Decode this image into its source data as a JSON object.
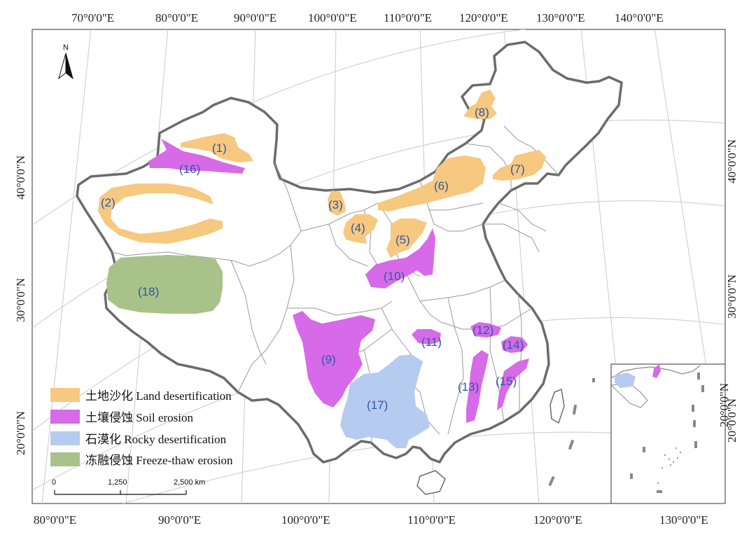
{
  "top_longitudes": [
    "70°0'0\"E",
    "80°0'0\"E",
    "90°0'0\"E",
    "100°0'0\"E",
    "110°0'0\"E",
    "120°0'0\"E",
    "130°0'0\"E",
    "140°0'0\"E"
  ],
  "bottom_longitudes": [
    "80°0'0\"E",
    "90°0'0\"E",
    "100°0'0\"E",
    "110°0'0\"E",
    "120°0'0\"E",
    "130°0'0\"E"
  ],
  "left_latitudes": [
    "40°0'0\"N",
    "30°0'0\"N",
    "20°0'0\"N"
  ],
  "right_latitudes": [
    "40°0'0\"N",
    "30°0'0\"N",
    "20°0'0\"N"
  ],
  "inset_latitude": "20°0'0\"N",
  "north_arrow": {
    "label": "N"
  },
  "legend": [
    {
      "label": "土地沙化 Land desertification",
      "color": "#f7c880"
    },
    {
      "label": "土壤侵蚀 Soil erosion",
      "color": "#d66ae8"
    },
    {
      "label": "石漠化 Rocky desertification",
      "color": "#b6cbf0"
    },
    {
      "label": "冻融侵蚀 Freeze-thaw erosion",
      "color": "#a9c28a"
    }
  ],
  "scale_bar": {
    "ticks": [
      "0",
      "1,250",
      "2,500 km"
    ]
  },
  "regions": [
    {
      "id": "1",
      "label": "(1)",
      "type": "Land desertification"
    },
    {
      "id": "2",
      "label": "(2)",
      "type": "Land desertification"
    },
    {
      "id": "3",
      "label": "(3)",
      "type": "Land desertification"
    },
    {
      "id": "4",
      "label": "(4)",
      "type": "Land desertification"
    },
    {
      "id": "5",
      "label": "(5)",
      "type": "Land desertification"
    },
    {
      "id": "6",
      "label": "(6)",
      "type": "Land desertification"
    },
    {
      "id": "7",
      "label": "(7)",
      "type": "Land desertification"
    },
    {
      "id": "8",
      "label": "(8)",
      "type": "Land desertification"
    },
    {
      "id": "9",
      "label": "(9)",
      "type": "Soil erosion"
    },
    {
      "id": "10",
      "label": "(10)",
      "type": "Soil erosion"
    },
    {
      "id": "11",
      "label": "(11)",
      "type": "Soil erosion"
    },
    {
      "id": "12",
      "label": "(12)",
      "type": "Soil erosion"
    },
    {
      "id": "13",
      "label": "(13)",
      "type": "Soil erosion"
    },
    {
      "id": "14",
      "label": "(14)",
      "type": "Soil erosion"
    },
    {
      "id": "15",
      "label": "(15)",
      "type": "Soil erosion"
    },
    {
      "id": "16",
      "label": "(16)",
      "type": "Soil erosion"
    },
    {
      "id": "17",
      "label": "(17)",
      "type": "Rocky desertification"
    },
    {
      "id": "18",
      "label": "(18)",
      "type": "Freeze-thaw erosion"
    }
  ],
  "colors": {
    "land_desertification": "#f7c880",
    "soil_erosion": "#d66ae8",
    "rocky_desertification": "#b6cbf0",
    "freeze_thaw": "#a9c28a",
    "label_text": "#2a5aa8",
    "border": "#6b6b6b",
    "graticule": "#c9c9c9"
  }
}
